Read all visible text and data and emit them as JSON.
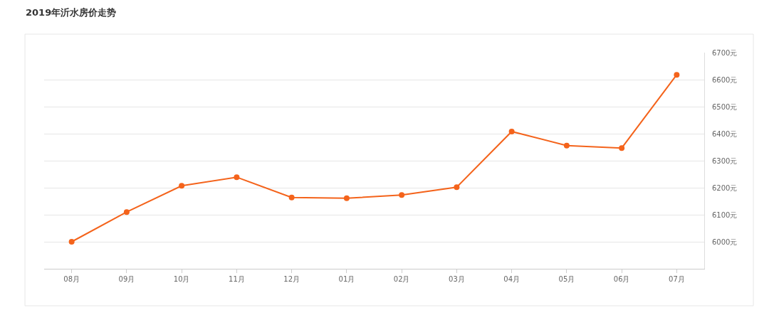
{
  "chart_data": {
    "type": "line",
    "title": "2019年沂水房价走势",
    "categories": [
      "08月",
      "09月",
      "10月",
      "11月",
      "12月",
      "01月",
      "02月",
      "03月",
      "04月",
      "05月",
      "06月",
      "07月"
    ],
    "series": [
      {
        "color": "#f4631b",
        "values": [
          6000,
          6110,
          6207,
          6239,
          6164,
          6161,
          6173,
          6202,
          6408,
          6356,
          6347,
          6618
        ]
      }
    ],
    "ylim": [
      5900,
      6700
    ],
    "yticks": [
      {
        "value": 6000,
        "label": "6000元"
      },
      {
        "value": 6100,
        "label": "6100元"
      },
      {
        "value": 6200,
        "label": "6200元"
      },
      {
        "value": 6300,
        "label": "6300元"
      },
      {
        "value": 6400,
        "label": "6400元"
      },
      {
        "value": 6500,
        "label": "6500元"
      },
      {
        "value": 6600,
        "label": "6600元"
      },
      {
        "value": 6700,
        "label": "6700元"
      }
    ],
    "grid": "y",
    "marker": "circle",
    "line_style": "solid"
  }
}
